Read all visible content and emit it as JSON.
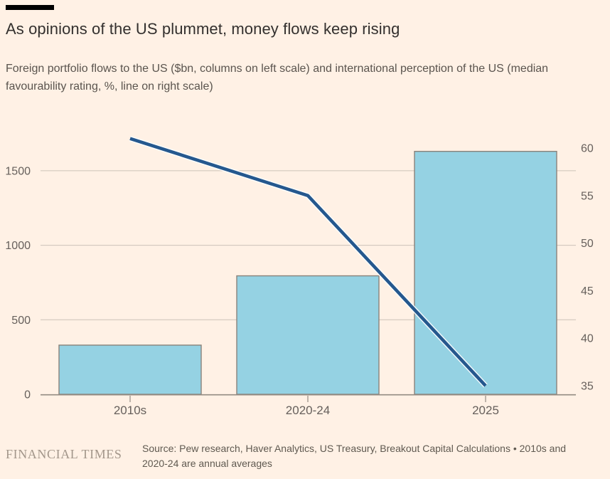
{
  "header": {
    "title": "As opinions of the US plummet, money flows keep rising",
    "subtitle": "Foreign portfolio flows to the US ($bn, columns on left scale) and international perception of the US (median favourability rating, %, line on right scale)"
  },
  "chart_data": {
    "type": "bar+line combo",
    "title": "As opinions of the US plummet, money flows keep rising",
    "subtitle": "Foreign portfolio flows to the US ($bn, columns on left scale) and international perception of the US (median favourability rating, %, line on right scale)",
    "categories": [
      "2010s",
      "2020-24",
      "2025"
    ],
    "series": [
      {
        "name": "Foreign portfolio flows to the US",
        "unit": "$bn",
        "type": "bar",
        "axis": "left",
        "values": [
          330,
          795,
          1630
        ]
      },
      {
        "name": "International perception of the US, median favourability rating",
        "unit": "%",
        "type": "line",
        "axis": "right",
        "values": [
          61,
          55,
          35
        ]
      }
    ],
    "left_axis": {
      "ticks": [
        0,
        500,
        1000,
        1500
      ],
      "range": [
        0,
        1835
      ]
    },
    "right_axis": {
      "ticks": [
        35,
        40,
        45,
        50,
        55,
        60
      ],
      "range": [
        34,
        63
      ]
    },
    "grid": "horizontal only",
    "legend": "none",
    "source": "Source: Pew research, Haver Analytics, US Treasury, Breakout Capital Calculations • 2010s and 2020-24 are annual averages"
  },
  "footer": {
    "logo": "FINANCIAL TIMES"
  },
  "colors": {
    "background": "#FFF1E5",
    "bar_fill": "#95D2E3",
    "bar_border": "#8A827A",
    "line": "#25588E",
    "line_casing": "#FFFFFF",
    "gridline": "#CCC2B8",
    "axis_line": "#938B82",
    "axis_text": "#66605C",
    "title_text": "#33302E",
    "accent_bar": "#000000"
  }
}
